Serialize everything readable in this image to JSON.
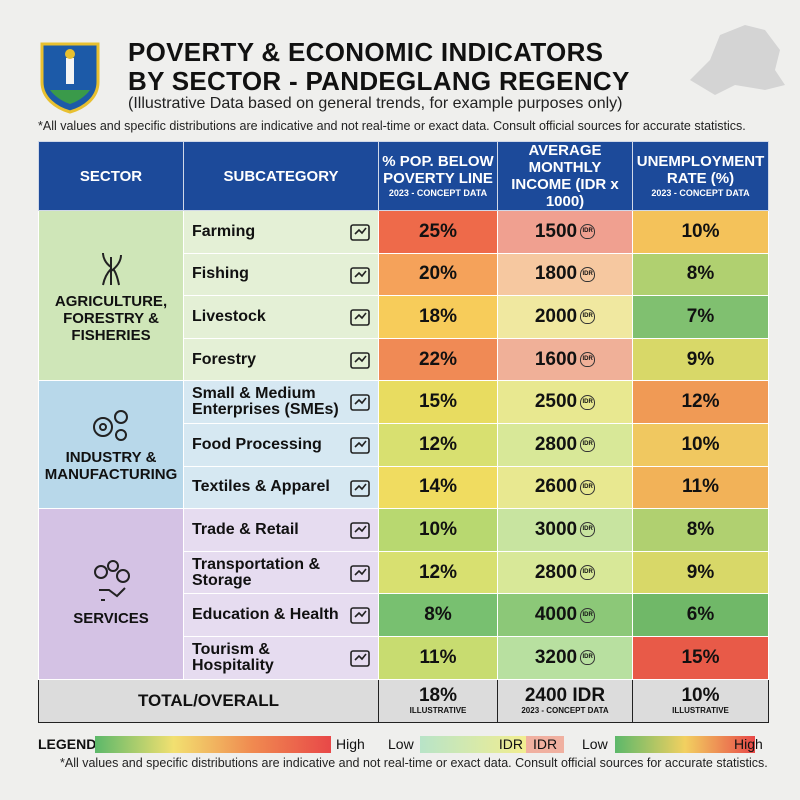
{
  "header": {
    "title_line1": "POVERTY & ECONOMIC INDICATORS",
    "title_line2": "BY SECTOR - PANDEGLANG REGENCY",
    "subtitle": "(Illustrative Data based on general trends, for example purposes only)",
    "note": "*All values and specific distributions are indicative and not real-time or exact data. Consult official sources for accurate statistics."
  },
  "columns": {
    "sector": "SECTOR",
    "subcategory": "SUBCATEGORY",
    "poverty": "% POP. BELOW POVERTY LINE",
    "poverty_note": "2023 - CONCEPT DATA",
    "income": "AVERAGE MONTHLY INCOME (IDR x 1000)",
    "unemployment": "UNEMPLOYMENT RATE (%)",
    "unemployment_note": "2023 - CONCEPT DATA"
  },
  "idr_icon_label": "IDR",
  "sectors": [
    {
      "name": "AGRICULTURE, FORESTRY & FISHERIES",
      "color": "#cfe6b8",
      "sub_color": "#e4f0d6",
      "icon": "rice-plant-icon"
    },
    {
      "name": "INDUSTRY & MANUFACTURING",
      "color": "#b8d8ea",
      "sub_color": "#d6e8f2",
      "icon": "gears-icon"
    },
    {
      "name": "SERVICES",
      "color": "#d4c2e4",
      "sub_color": "#e6dcf0",
      "icon": "services-hand-icon"
    }
  ],
  "rows": [
    {
      "sub": "Farming",
      "icon": "rice-icon",
      "poverty": "25%",
      "income": "1500",
      "unemployment": "10%",
      "pc": "#ee6a4a",
      "ic": "#f0a090",
      "uc": "#f4c25a"
    },
    {
      "sub": "Fishing",
      "icon": "fish-boat-icon",
      "poverty": "20%",
      "income": "1800",
      "unemployment": "8%",
      "pc": "#f5a25a",
      "ic": "#f6c8a0",
      "uc": "#b0d070"
    },
    {
      "sub": "Livestock",
      "icon": "cow-icon",
      "poverty": "18%",
      "income": "2000",
      "unemployment": "7%",
      "pc": "#f7cc5a",
      "ic": "#f0e8a0",
      "uc": "#80c070"
    },
    {
      "sub": "Forestry",
      "icon": "trees-icon",
      "poverty": "22%",
      "income": "1600",
      "unemployment": "9%",
      "pc": "#f08a55",
      "ic": "#f0b098",
      "uc": "#d8d868"
    },
    {
      "sub": "Small & Medium Enterprises (SMEs)",
      "icon": "gear-leaf-icon",
      "poverty": "15%",
      "income": "2500",
      "unemployment": "12%",
      "pc": "#e8dc60",
      "ic": "#e8e890",
      "uc": "#f09a55"
    },
    {
      "sub": "Food Processing",
      "icon": "food-jars-icon",
      "poverty": "12%",
      "income": "2800",
      "unemployment": "10%",
      "pc": "#d8e070",
      "ic": "#d8e898",
      "uc": "#f0c860"
    },
    {
      "sub": "Textiles & Apparel",
      "icon": "shirt-icon",
      "poverty": "14%",
      "income": "2600",
      "unemployment": "11%",
      "pc": "#f0dc60",
      "ic": "#e8e890",
      "uc": "#f2b258"
    },
    {
      "sub": "Trade & Retail",
      "icon": "store-icon",
      "poverty": "10%",
      "income": "3000",
      "unemployment": "8%",
      "pc": "#b8d870",
      "ic": "#c8e4a0",
      "uc": "#b0d070"
    },
    {
      "sub": "Transportation & Storage",
      "icon": "truck-icon",
      "poverty": "12%",
      "income": "2800",
      "unemployment": "9%",
      "pc": "#d8e070",
      "ic": "#d8e898",
      "uc": "#d8d868"
    },
    {
      "sub": "Education & Health",
      "icon": "school-icon",
      "poverty": "8%",
      "income": "4000",
      "unemployment": "6%",
      "pc": "#78c070",
      "ic": "#8cc878",
      "uc": "#70b868"
    },
    {
      "sub": "Tourism & Hospitality",
      "icon": "hotel-icon",
      "poverty": "11%",
      "income": "3200",
      "unemployment": "15%",
      "pc": "#c8dc70",
      "ic": "#b8e0a0",
      "uc": "#e85a48"
    }
  ],
  "total": {
    "label": "TOTAL/OVERALL",
    "poverty": "18%",
    "poverty_note": "ILLUSTRATIVE",
    "income": "2400 IDR",
    "income_note": "2023 - CONCEPT DATA",
    "unemployment": "10%",
    "unemployment_note": "ILLUSTRATIVE"
  },
  "legend": {
    "label": "LEGEND",
    "high1": "High",
    "low2": "Low",
    "idr_a": "IDR",
    "idr_b": "IDR",
    "low3": "Low",
    "high3": "High"
  },
  "footer_note": "*All values and specific distributions are indicative and not real-time or exact data. Consult official sources for accurate statistics."
}
